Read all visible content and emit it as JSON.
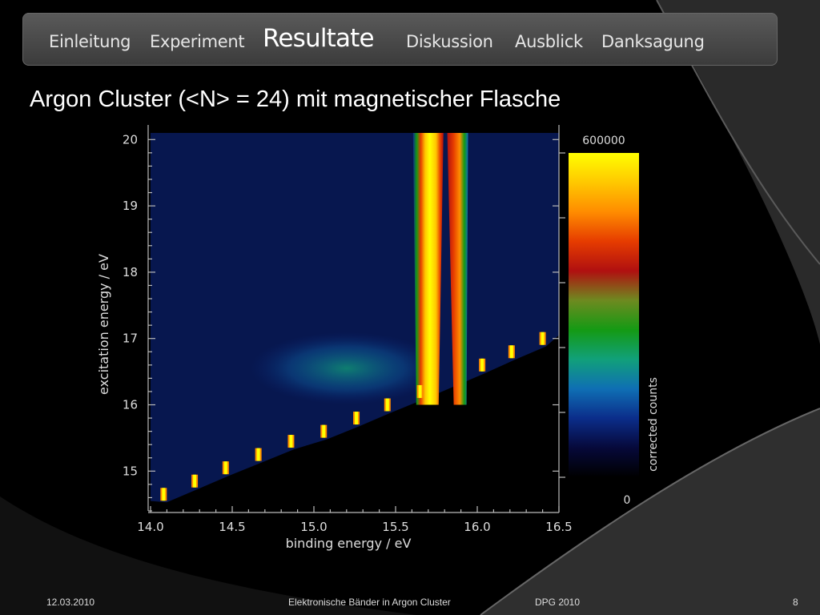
{
  "nav": {
    "items": [
      {
        "label": "Einleitung",
        "active": false
      },
      {
        "label": "Experiment",
        "active": false
      },
      {
        "label": "Resultate",
        "active": true
      },
      {
        "label": "Diskussion",
        "active": false
      },
      {
        "label": "Ausblick",
        "active": false
      },
      {
        "label": "Danksagung",
        "active": false
      }
    ]
  },
  "slide": {
    "title": "Argon Cluster (<N> = 24) mit magnetischer Flasche"
  },
  "footer": {
    "date": "12.03.2010",
    "center": "Elektronische Bänder in Argon Cluster",
    "event": "DPG 2010",
    "page": "8"
  },
  "chart_data": {
    "type": "heatmap",
    "xlabel": "binding energy / eV",
    "ylabel": "excitation energy / eV",
    "xlim": [
      14.0,
      16.5
    ],
    "ylim": [
      14.4,
      20.1
    ],
    "x_ticks": [
      "14.0",
      "14.5",
      "15.0",
      "15.5",
      "16.0",
      "16.5"
    ],
    "y_ticks": [
      "15",
      "16",
      "17",
      "18",
      "19",
      "20"
    ],
    "colorbar": {
      "label": "corrected counts",
      "min": 0,
      "max": 600000,
      "min_label": "0",
      "max_label": "600000"
    },
    "colormap": [
      "#000000",
      "#06093a",
      "#0b2d8a",
      "#0f6fb4",
      "#11a07a",
      "#149a14",
      "#6e8a20",
      "#b01010",
      "#e63c00",
      "#ff8c00",
      "#ffc800",
      "#ffff00"
    ],
    "bands": [
      {
        "name": "band-1",
        "x_at_top": 15.7,
        "x_at_bottom": 15.7,
        "intensity": 0.98
      },
      {
        "name": "band-2",
        "x_at_top": 15.88,
        "x_at_bottom": 15.9,
        "intensity": 0.8
      }
    ],
    "atomic_lines": [
      {
        "x": 14.08,
        "y": 14.65
      },
      {
        "x": 14.27,
        "y": 14.85
      },
      {
        "x": 14.46,
        "y": 15.05
      },
      {
        "x": 14.66,
        "y": 15.25
      },
      {
        "x": 14.86,
        "y": 15.45
      },
      {
        "x": 15.06,
        "y": 15.6
      },
      {
        "x": 15.26,
        "y": 15.8
      },
      {
        "x": 15.45,
        "y": 16.0
      },
      {
        "x": 15.65,
        "y": 16.2
      },
      {
        "x": 16.03,
        "y": 16.6
      },
      {
        "x": 16.21,
        "y": 16.8
      },
      {
        "x": 16.4,
        "y": 17.0
      }
    ]
  }
}
